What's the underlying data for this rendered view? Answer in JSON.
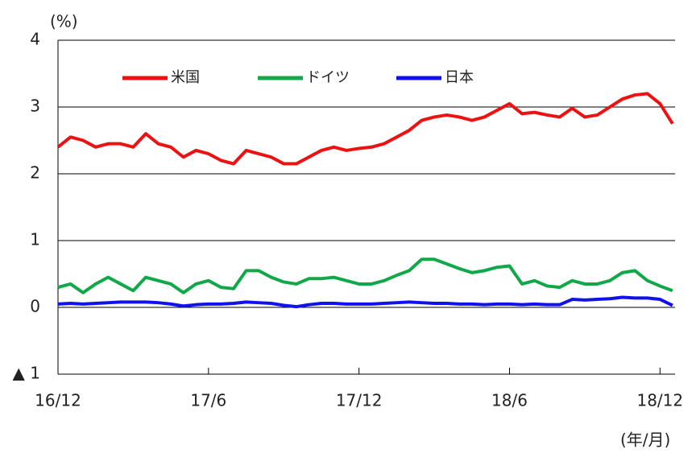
{
  "chart_data": {
    "type": "line",
    "y_unit_label": "(%)",
    "x_unit_label": "(年/月)",
    "x": [
      0,
      0.5,
      1,
      1.5,
      2,
      2.5,
      3,
      3.5,
      4,
      4.5,
      5,
      5.5,
      6,
      6.5,
      7,
      7.5,
      8,
      8.5,
      9,
      9.5,
      10,
      10.5,
      11,
      11.5,
      12,
      12.5,
      13,
      13.5,
      14,
      14.5,
      15,
      15.5,
      16,
      16.5,
      17,
      17.5,
      18,
      18.5,
      19,
      19.5,
      20,
      20.5,
      21,
      21.5,
      22,
      22.5,
      23,
      23.5,
      24,
      24.5
    ],
    "series": [
      {
        "name": "米国",
        "color": "#ee1111",
        "values": [
          2.4,
          2.55,
          2.5,
          2.4,
          2.45,
          2.45,
          2.4,
          2.6,
          2.45,
          2.4,
          2.25,
          2.35,
          2.3,
          2.2,
          2.15,
          2.35,
          2.3,
          2.25,
          2.15,
          2.15,
          2.25,
          2.35,
          2.4,
          2.35,
          2.38,
          2.4,
          2.45,
          2.55,
          2.65,
          2.8,
          2.85,
          2.88,
          2.85,
          2.8,
          2.85,
          2.95,
          3.05,
          2.9,
          2.92,
          2.88,
          2.85,
          2.98,
          2.85,
          2.88,
          3.0,
          3.12,
          3.18,
          3.2,
          3.05,
          2.75
        ]
      },
      {
        "name": "ドイツ",
        "color": "#11a84a",
        "values": [
          0.3,
          0.35,
          0.22,
          0.35,
          0.45,
          0.35,
          0.25,
          0.45,
          0.4,
          0.35,
          0.22,
          0.35,
          0.4,
          0.3,
          0.28,
          0.55,
          0.55,
          0.45,
          0.38,
          0.35,
          0.43,
          0.43,
          0.45,
          0.4,
          0.35,
          0.35,
          0.4,
          0.48,
          0.55,
          0.72,
          0.72,
          0.65,
          0.58,
          0.52,
          0.55,
          0.6,
          0.62,
          0.35,
          0.4,
          0.32,
          0.3,
          0.4,
          0.35,
          0.35,
          0.4,
          0.52,
          0.55,
          0.4,
          0.32,
          0.25
        ]
      },
      {
        "name": "日本",
        "color": "#1111ee",
        "values": [
          0.05,
          0.06,
          0.05,
          0.06,
          0.07,
          0.08,
          0.08,
          0.08,
          0.07,
          0.05,
          0.02,
          0.04,
          0.05,
          0.05,
          0.06,
          0.08,
          0.07,
          0.06,
          0.03,
          0.01,
          0.04,
          0.06,
          0.06,
          0.05,
          0.05,
          0.05,
          0.06,
          0.07,
          0.08,
          0.07,
          0.06,
          0.06,
          0.05,
          0.05,
          0.04,
          0.05,
          0.05,
          0.04,
          0.05,
          0.04,
          0.04,
          0.12,
          0.11,
          0.12,
          0.13,
          0.15,
          0.14,
          0.14,
          0.12,
          0.03
        ]
      }
    ],
    "xlim": [
      0,
      24.6
    ],
    "xticks": [
      {
        "value": 0,
        "label": "16/12"
      },
      {
        "value": 6,
        "label": "17/6"
      },
      {
        "value": 12,
        "label": "17/12"
      },
      {
        "value": 18,
        "label": "18/6"
      },
      {
        "value": 24,
        "label": "18/12"
      }
    ],
    "ylim": [
      -1,
      4
    ],
    "yticks": [
      {
        "value": -1,
        "label": "▲ 1"
      },
      0,
      1,
      2,
      3,
      4
    ],
    "grid": true,
    "legend": "top"
  }
}
